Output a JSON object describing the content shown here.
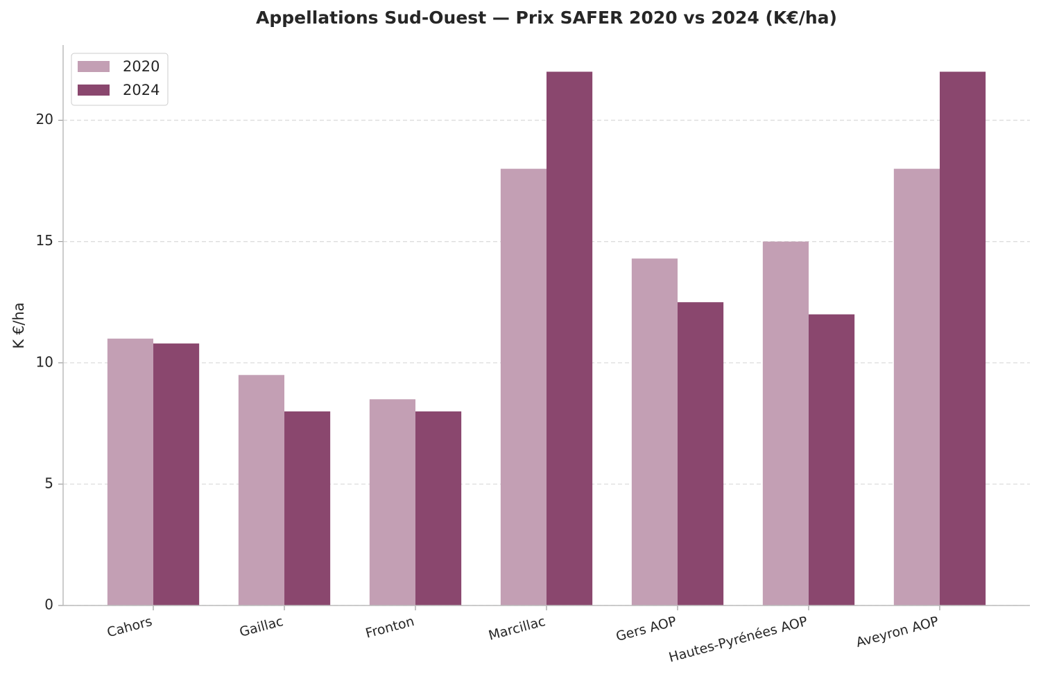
{
  "chart_data": {
    "type": "grouped_bar",
    "title": "Appellations Sud-Ouest — Prix SAFER 2020 vs 2024 (K€/ha)",
    "y_label": "K €/ha",
    "categories": [
      "Cahors",
      "Gaillac",
      "Fronton",
      "Marcillac",
      "Gers AOP",
      "Hautes-Pyrénées AOP",
      "Aveyron AOP"
    ],
    "series": [
      {
        "name": "2020",
        "color": "#c39fb4",
        "values": [
          11.0,
          9.5,
          8.5,
          18.0,
          14.3,
          15.0,
          18.0
        ]
      },
      {
        "name": "2024",
        "color": "#8a476e",
        "values": [
          10.8,
          8.0,
          8.0,
          22.0,
          12.5,
          12.0,
          22.0
        ]
      }
    ],
    "ylim": [
      0,
      23.1
    ],
    "yticks": [
      0,
      5,
      10,
      15,
      20
    ],
    "grid": true,
    "legend": "upper-left"
  }
}
